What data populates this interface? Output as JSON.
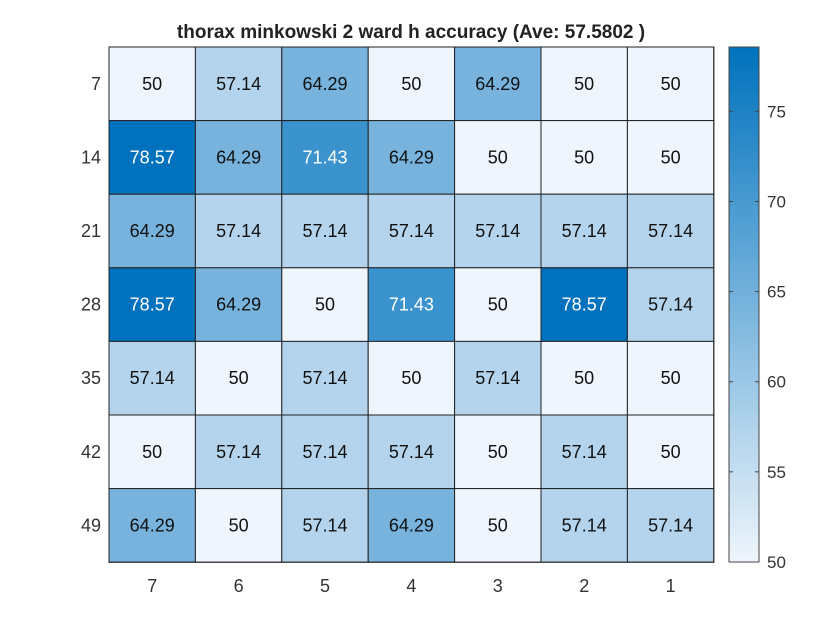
{
  "chart_data": {
    "type": "heatmap",
    "title": "thorax minkowski 2 ward h accuracy (Ave:  57.5802 )",
    "x_categories": [
      "7",
      "6",
      "5",
      "4",
      "3",
      "2",
      "1"
    ],
    "y_categories": [
      "7",
      "14",
      "21",
      "28",
      "35",
      "42",
      "49"
    ],
    "values": [
      [
        "50",
        "57.14",
        "64.29",
        "50",
        "64.29",
        "50",
        "50"
      ],
      [
        "78.57",
        "64.29",
        "71.43",
        "64.29",
        "50",
        "50",
        "50"
      ],
      [
        "64.29",
        "57.14",
        "57.14",
        "57.14",
        "57.14",
        "57.14",
        "57.14"
      ],
      [
        "78.57",
        "64.29",
        "50",
        "71.43",
        "50",
        "78.57",
        "57.14"
      ],
      [
        "57.14",
        "50",
        "57.14",
        "50",
        "57.14",
        "50",
        "50"
      ],
      [
        "50",
        "57.14",
        "57.14",
        "57.14",
        "50",
        "57.14",
        "50"
      ],
      [
        "64.29",
        "50",
        "57.14",
        "64.29",
        "50",
        "57.14",
        "57.14"
      ]
    ],
    "colorbar": {
      "range": [
        50,
        78.57
      ],
      "ticks": [
        "50",
        "55",
        "60",
        "65",
        "70",
        "75"
      ],
      "colormap": {
        "low": "#eef5fc",
        "high": "#0072bd"
      }
    },
    "grid": true
  }
}
